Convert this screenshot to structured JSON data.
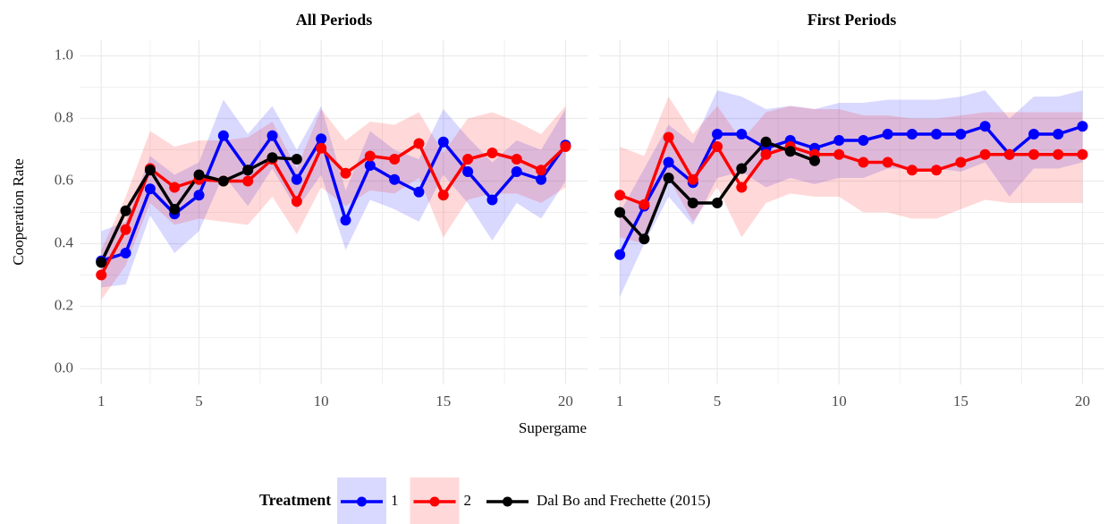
{
  "chart_data": [
    {
      "type": "line",
      "title": "All Periods",
      "ylabel": "Cooperation Rate",
      "xlabel": "Supergame",
      "legend": {
        "title": "Treatment",
        "position": "bottom"
      },
      "x": [
        1,
        2,
        3,
        4,
        5,
        6,
        7,
        8,
        9,
        10,
        11,
        12,
        13,
        14,
        15,
        16,
        17,
        18,
        19,
        20
      ],
      "xlim": [
        0.15,
        20.9
      ],
      "xticks": [
        1,
        5,
        10,
        15,
        20
      ],
      "ylim": [
        -0.05,
        1.05
      ],
      "yticks": [
        {
          "value": 0,
          "label": "0.0"
        },
        0.2,
        0.4,
        0.6,
        0.8,
        {
          "value": 1,
          "label": "1.0"
        }
      ],
      "grid": true,
      "series": [
        {
          "name": "1",
          "color": "#0000ff",
          "band_color": "#0000ff",
          "values": [
            0.345,
            0.37,
            0.575,
            0.495,
            0.555,
            0.745,
            0.635,
            0.745,
            0.605,
            0.735,
            0.475,
            0.65,
            0.605,
            0.565,
            0.725,
            0.63,
            0.54,
            0.63,
            0.605,
            0.715
          ],
          "lower": [
            0.26,
            0.27,
            0.49,
            0.37,
            0.44,
            0.62,
            0.52,
            0.64,
            0.51,
            0.62,
            0.38,
            0.54,
            0.51,
            0.47,
            0.62,
            0.53,
            0.41,
            0.53,
            0.48,
            0.6
          ],
          "upper": [
            0.44,
            0.47,
            0.68,
            0.62,
            0.66,
            0.86,
            0.75,
            0.84,
            0.7,
            0.84,
            0.57,
            0.76,
            0.7,
            0.67,
            0.83,
            0.74,
            0.66,
            0.73,
            0.7,
            0.83
          ]
        },
        {
          "name": "2",
          "color": "#ff0000",
          "band_color": "#ff0000",
          "values": [
            0.3,
            0.445,
            0.64,
            0.58,
            0.605,
            0.6,
            0.6,
            0.67,
            0.535,
            0.705,
            0.625,
            0.68,
            0.67,
            0.72,
            0.555,
            0.67,
            0.69,
            0.67,
            0.635,
            0.71
          ],
          "lower": [
            0.22,
            0.33,
            0.53,
            0.46,
            0.48,
            0.47,
            0.46,
            0.55,
            0.43,
            0.58,
            0.52,
            0.57,
            0.56,
            0.61,
            0.42,
            0.54,
            0.56,
            0.56,
            0.53,
            0.58
          ],
          "upper": [
            0.38,
            0.55,
            0.76,
            0.71,
            0.73,
            0.73,
            0.74,
            0.79,
            0.64,
            0.83,
            0.73,
            0.79,
            0.78,
            0.82,
            0.69,
            0.8,
            0.82,
            0.79,
            0.75,
            0.84
          ]
        },
        {
          "name": "Dal Bo and Frechette (2015)",
          "color": "#000000",
          "values": [
            0.34,
            0.505,
            0.635,
            0.51,
            0.62,
            0.6,
            0.635,
            0.675,
            0.67,
            null,
            null,
            null,
            null,
            null,
            null,
            null,
            null,
            null,
            null,
            null
          ]
        }
      ]
    },
    {
      "type": "line",
      "title": "First Periods",
      "x": [
        1,
        2,
        3,
        4,
        5,
        6,
        7,
        8,
        9,
        10,
        11,
        12,
        13,
        14,
        15,
        16,
        17,
        18,
        19,
        20
      ],
      "xlim": [
        0.15,
        20.9
      ],
      "xticks": [
        1,
        5,
        10,
        15,
        20
      ],
      "ylim": [
        -0.05,
        1.05
      ],
      "yticks": [
        {
          "value": 0,
          "label": "0.0"
        },
        0.2,
        0.4,
        0.6,
        0.8,
        {
          "value": 1,
          "label": "1.0"
        }
      ],
      "grid": true,
      "series": [
        {
          "name": "1",
          "color": "#0000ff",
          "band_color": "#0000ff",
          "values": [
            0.365,
            0.52,
            0.66,
            0.595,
            0.75,
            0.75,
            0.705,
            0.73,
            0.705,
            0.73,
            0.73,
            0.75,
            0.75,
            0.75,
            0.75,
            0.775,
            0.685,
            0.75,
            0.75,
            0.775
          ],
          "lower": [
            0.23,
            0.4,
            0.55,
            0.46,
            0.61,
            0.63,
            0.58,
            0.61,
            0.59,
            0.61,
            0.61,
            0.64,
            0.64,
            0.64,
            0.63,
            0.66,
            0.55,
            0.64,
            0.64,
            0.66
          ],
          "upper": [
            0.5,
            0.64,
            0.78,
            0.72,
            0.89,
            0.87,
            0.83,
            0.84,
            0.83,
            0.85,
            0.85,
            0.86,
            0.86,
            0.86,
            0.87,
            0.89,
            0.8,
            0.87,
            0.87,
            0.89
          ]
        },
        {
          "name": "2",
          "color": "#ff0000",
          "band_color": "#ff0000",
          "values": [
            0.555,
            0.525,
            0.74,
            0.605,
            0.71,
            0.58,
            0.685,
            0.71,
            0.685,
            0.685,
            0.66,
            0.66,
            0.635,
            0.635,
            0.66,
            0.685,
            0.685,
            0.685,
            0.685,
            0.685
          ],
          "lower": [
            0.42,
            0.4,
            0.61,
            0.47,
            0.58,
            0.42,
            0.53,
            0.56,
            0.55,
            0.55,
            0.5,
            0.5,
            0.48,
            0.48,
            0.51,
            0.54,
            0.53,
            0.53,
            0.53,
            0.53
          ],
          "upper": [
            0.71,
            0.68,
            0.87,
            0.75,
            0.84,
            0.73,
            0.82,
            0.84,
            0.83,
            0.83,
            0.81,
            0.81,
            0.8,
            0.8,
            0.81,
            0.82,
            0.82,
            0.82,
            0.82,
            0.82
          ]
        },
        {
          "name": "Dal Bo and Frechette (2015)",
          "color": "#000000",
          "values": [
            0.5,
            0.415,
            0.61,
            0.53,
            0.53,
            0.64,
            0.725,
            0.695,
            0.665,
            null,
            null,
            null,
            null,
            null,
            null,
            null,
            null,
            null,
            null,
            null
          ]
        }
      ]
    }
  ]
}
